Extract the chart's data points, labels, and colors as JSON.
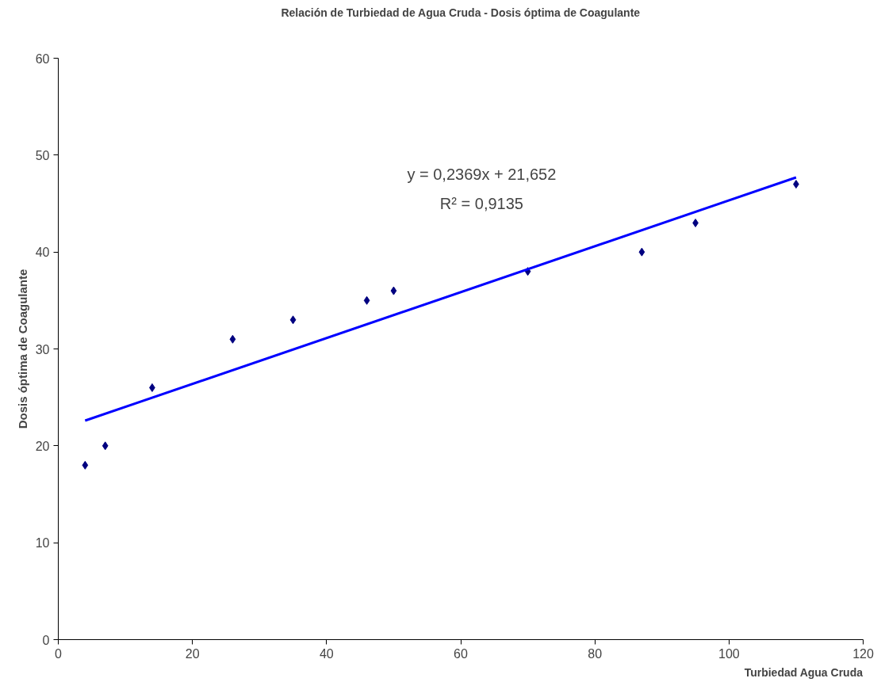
{
  "chart_data": {
    "type": "scatter",
    "title": "Relación de Turbiedad de Agua Cruda - Dosis óptima de Coagulante",
    "xlabel": "Turbiedad Agua Cruda",
    "ylabel": "Dosis óptima de Coagulante",
    "x": [
      4,
      7,
      14,
      26,
      35,
      46,
      50,
      70,
      87,
      95,
      110
    ],
    "series": [
      {
        "color": "#000080",
        "values": [
          18,
          20,
          26,
          31,
          33,
          35,
          36,
          38,
          40,
          43,
          47
        ]
      },
      {
        "type": "line",
        "marker": "none",
        "color": "#0000ff",
        "x": [
          4,
          110
        ],
        "values": [
          22.6,
          47.7
        ]
      }
    ],
    "annotations": [
      "y = 0,2369x + 21,652",
      "R² = 0,9135"
    ],
    "xlim": [
      0,
      120
    ],
    "xticks": [
      0,
      20,
      40,
      60,
      80,
      100,
      120
    ],
    "ylim": [
      0,
      60
    ],
    "yticks": [
      0,
      10,
      20,
      30,
      40,
      50,
      60
    ],
    "marker": "diamond",
    "line_style": "solid",
    "grid": false
  }
}
